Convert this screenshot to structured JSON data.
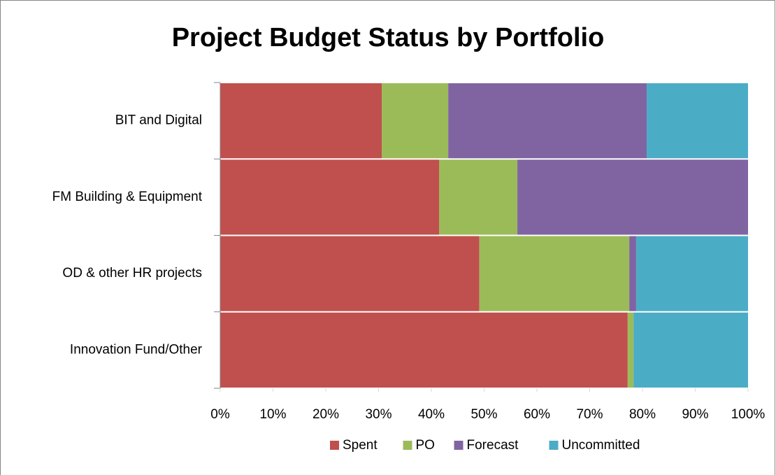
{
  "chart_data": {
    "type": "stacked-bar-horizontal",
    "title": "Project Budget Status by Portfolio",
    "categories": [
      "BIT and Digital",
      "FM Building & Equipment",
      "OD & other HR projects",
      "Innovation Fund/Other"
    ],
    "series": [
      {
        "name": "Spent",
        "color": "#c0504d",
        "values": [
          30.6,
          41.5,
          49.1,
          77.2
        ]
      },
      {
        "name": "PO",
        "color": "#9bbb59",
        "values": [
          12.6,
          14.8,
          28.4,
          1.1
        ]
      },
      {
        "name": "Forecast",
        "color": "#8064a2",
        "values": [
          37.6,
          43.7,
          1.3,
          0
        ]
      },
      {
        "name": "Uncommitted",
        "color": "#4bacc6",
        "values": [
          19.2,
          0,
          21.2,
          21.7
        ]
      }
    ],
    "xlim": [
      0,
      100
    ],
    "xticks": [
      {
        "value": 0,
        "label": "0%"
      },
      {
        "value": 10,
        "label": "10%"
      },
      {
        "value": 20,
        "label": "20%"
      },
      {
        "value": 30,
        "label": "30%"
      },
      {
        "value": 40,
        "label": "40%"
      },
      {
        "value": 50,
        "label": "50%"
      },
      {
        "value": 60,
        "label": "60%"
      },
      {
        "value": 70,
        "label": "70%"
      },
      {
        "value": 80,
        "label": "80%"
      },
      {
        "value": 90,
        "label": "90%"
      },
      {
        "value": 100,
        "label": "100%"
      }
    ],
    "legend": "bottom"
  }
}
